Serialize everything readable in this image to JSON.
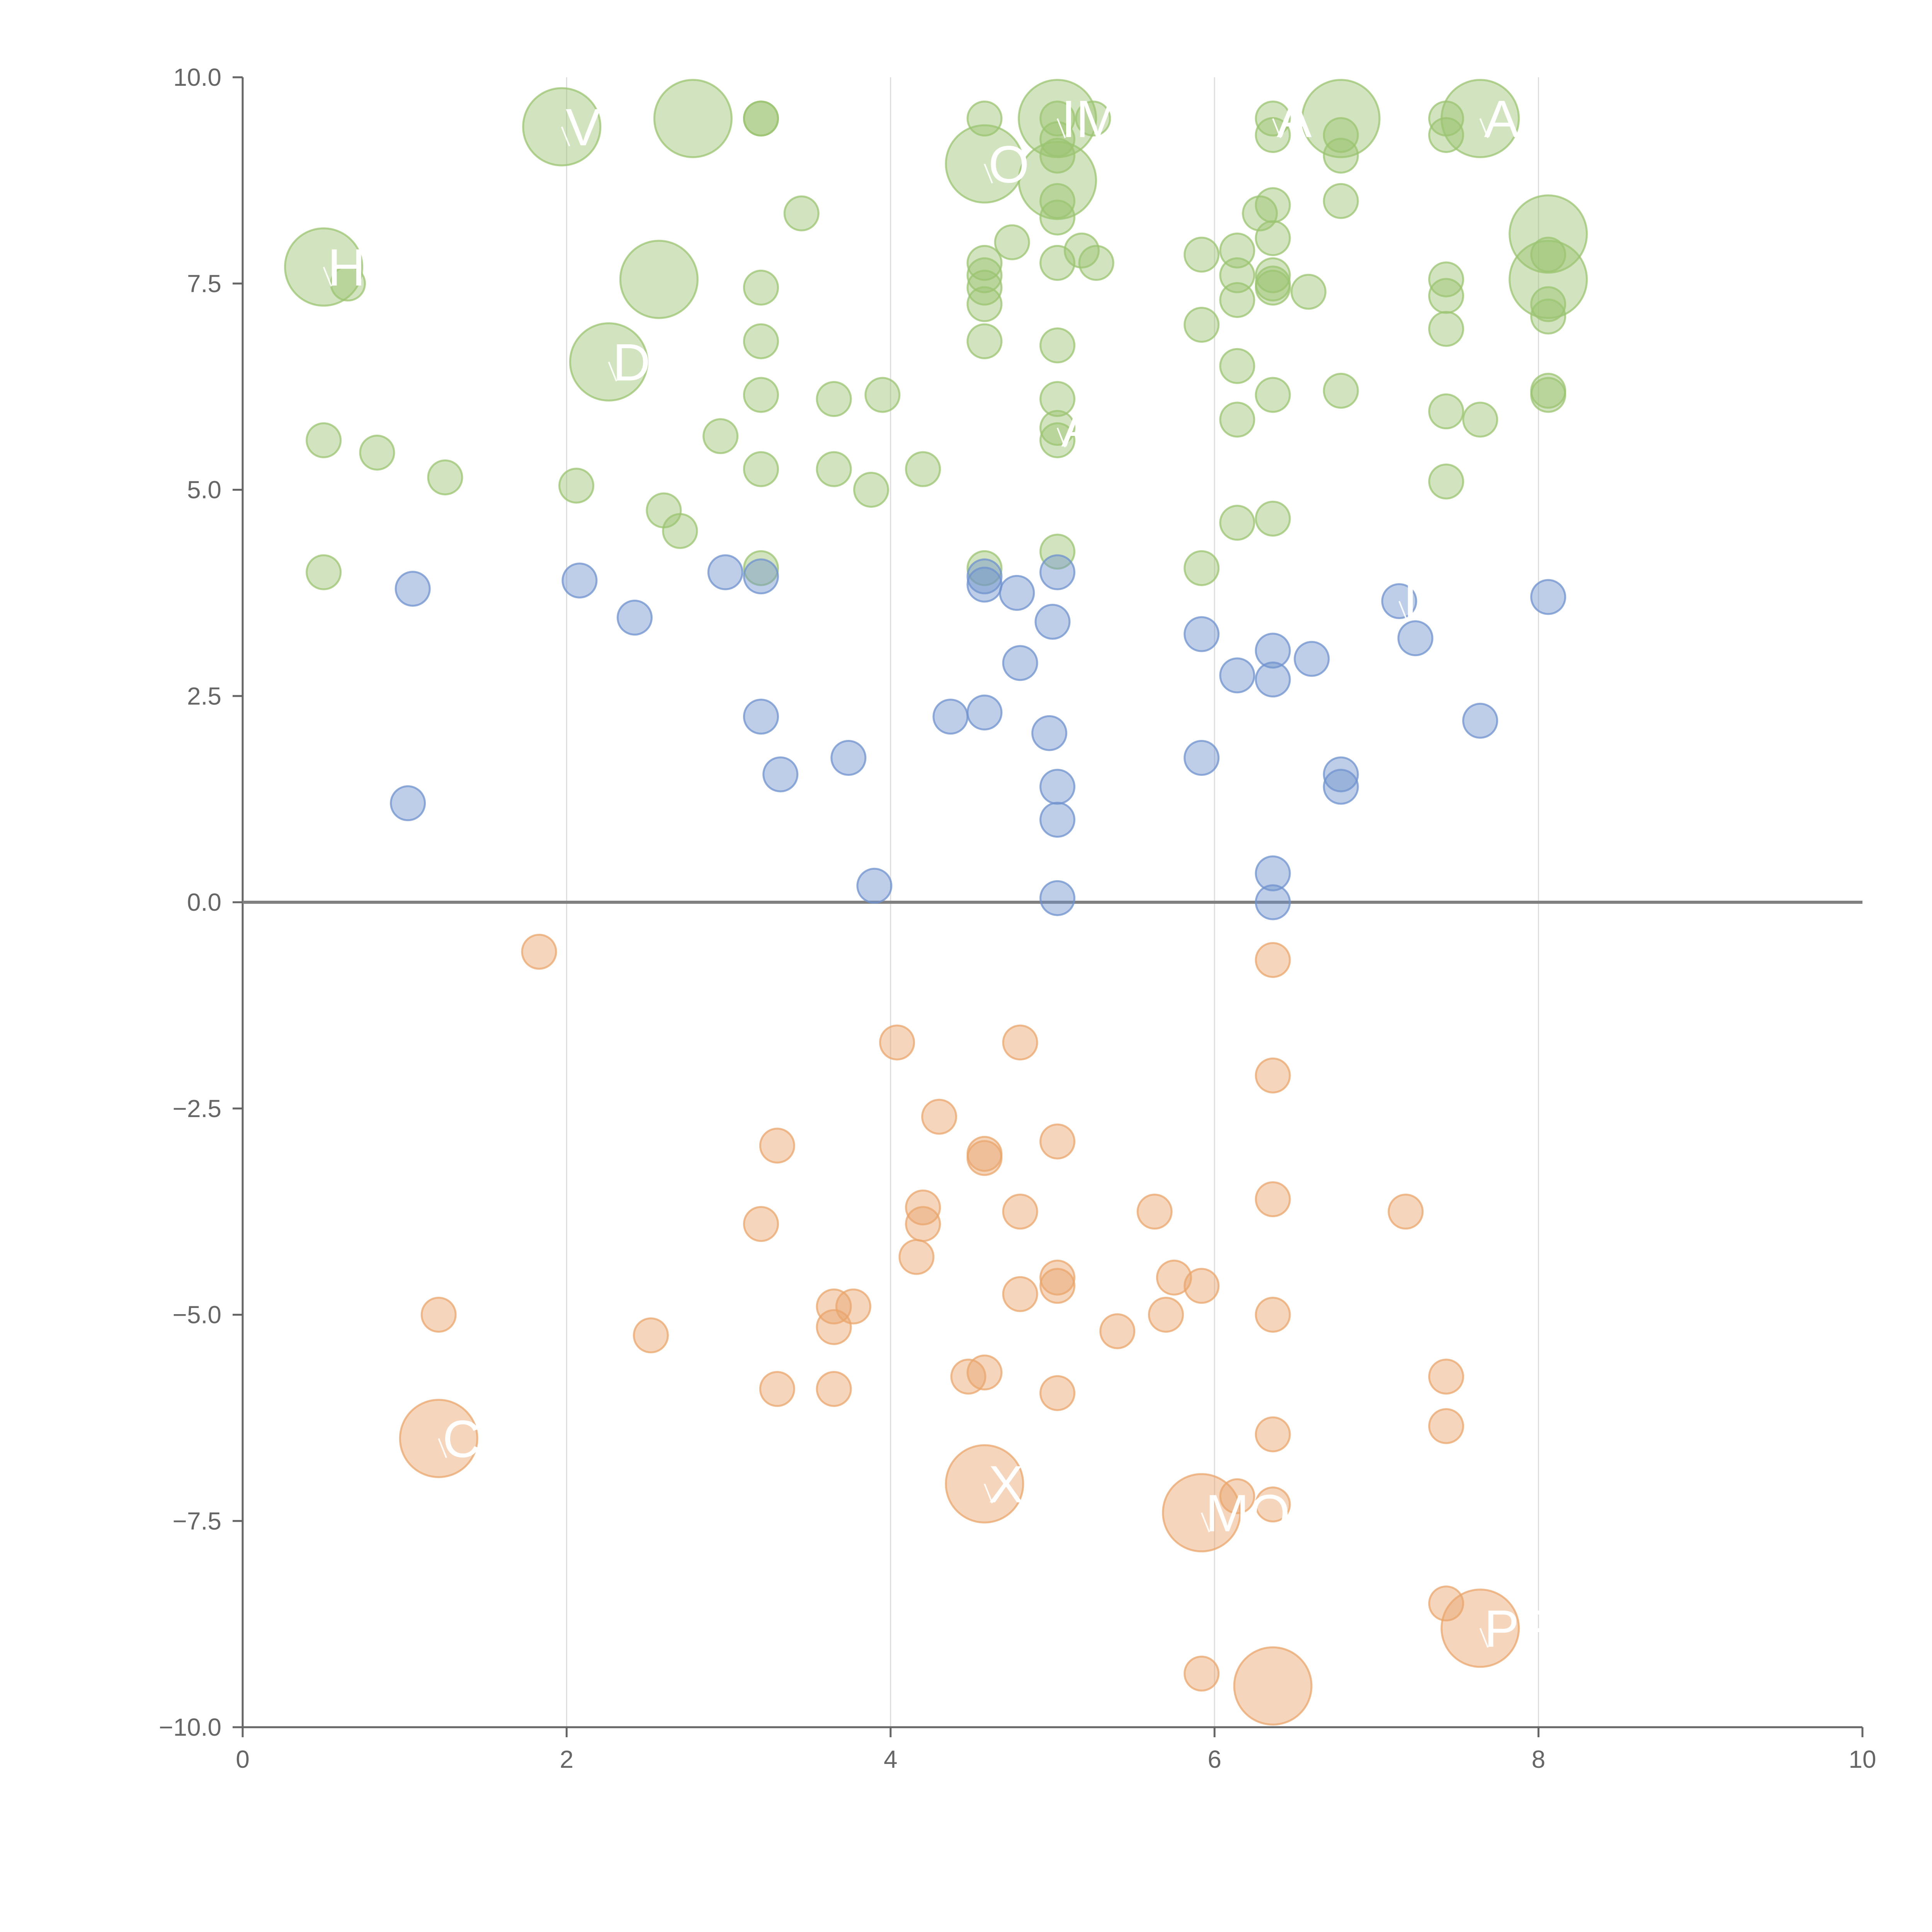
{
  "chart_data": {
    "type": "scatter",
    "title": "",
    "xlabel": "",
    "ylabel": "",
    "xlim": [
      0,
      10
    ],
    "ylim": [
      -10,
      10
    ],
    "x_ticks": [
      "0",
      "2",
      "4",
      "6",
      "8",
      "10"
    ],
    "x_tick_values": [
      0,
      2,
      4,
      6,
      8,
      10
    ],
    "y_ticks": [
      "10.0",
      "7.5",
      "5.0",
      "2.5",
      "0.0",
      "−2.5",
      "−5.0",
      "−7.5",
      "−10.0"
    ],
    "y_tick_values": [
      10,
      7.5,
      5,
      2.5,
      0,
      -2.5,
      -5,
      -7.5,
      -10
    ],
    "grid": "vertical at x ticks",
    "zero_line": 0,
    "colors": {
      "green": "#9bc472",
      "blue": "#6f92cd",
      "orange": "#e9a56c",
      "axis": "#666666",
      "zero_line": "#808080",
      "grid": "#dddddd"
    },
    "series": [
      {
        "name": "green",
        "color": "#9bc472",
        "points": [
          {
            "x": 0.5,
            "y": 7.7,
            "size": "large"
          },
          {
            "x": 0.65,
            "y": 7.5,
            "size": "small"
          },
          {
            "x": 0.5,
            "y": 5.6,
            "size": "small"
          },
          {
            "x": 0.83,
            "y": 5.45,
            "size": "small"
          },
          {
            "x": 1.25,
            "y": 5.15,
            "size": "small"
          },
          {
            "x": 0.5,
            "y": 4.0,
            "size": "small"
          },
          {
            "x": 1.97,
            "y": 9.4,
            "size": "large"
          },
          {
            "x": 2.78,
            "y": 9.5,
            "size": "large"
          },
          {
            "x": 2.57,
            "y": 7.55,
            "size": "large"
          },
          {
            "x": 2.26,
            "y": 6.55,
            "size": "large"
          },
          {
            "x": 2.06,
            "y": 5.05,
            "size": "small"
          },
          {
            "x": 2.6,
            "y": 4.75,
            "size": "small"
          },
          {
            "x": 2.7,
            "y": 4.5,
            "size": "small"
          },
          {
            "x": 2.95,
            "y": 5.65,
            "size": "small"
          },
          {
            "x": 3.2,
            "y": 9.5,
            "size": "small"
          },
          {
            "x": 3.2,
            "y": 9.5,
            "size": "small"
          },
          {
            "x": 3.45,
            "y": 8.35,
            "size": "small"
          },
          {
            "x": 3.2,
            "y": 7.45,
            "size": "small"
          },
          {
            "x": 3.2,
            "y": 6.8,
            "size": "small"
          },
          {
            "x": 3.2,
            "y": 6.15,
            "size": "small"
          },
          {
            "x": 3.2,
            "y": 5.25,
            "size": "small"
          },
          {
            "x": 3.2,
            "y": 4.05,
            "size": "small"
          },
          {
            "x": 3.65,
            "y": 6.1,
            "size": "small"
          },
          {
            "x": 3.65,
            "y": 5.25,
            "size": "small"
          },
          {
            "x": 3.88,
            "y": 5.0,
            "size": "small"
          },
          {
            "x": 3.95,
            "y": 6.15,
            "size": "small"
          },
          {
            "x": 4.2,
            "y": 5.25,
            "size": "small"
          },
          {
            "x": 4.58,
            "y": 9.5,
            "size": "small"
          },
          {
            "x": 4.58,
            "y": 8.95,
            "size": "large"
          },
          {
            "x": 4.58,
            "y": 7.75,
            "size": "small"
          },
          {
            "x": 4.58,
            "y": 7.6,
            "size": "small"
          },
          {
            "x": 4.58,
            "y": 7.45,
            "size": "small"
          },
          {
            "x": 4.58,
            "y": 7.25,
            "size": "small"
          },
          {
            "x": 4.58,
            "y": 6.8,
            "size": "small"
          },
          {
            "x": 4.58,
            "y": 4.05,
            "size": "small"
          },
          {
            "x": 4.75,
            "y": 8.0,
            "size": "small"
          },
          {
            "x": 5.03,
            "y": 9.5,
            "size": "large"
          },
          {
            "x": 5.03,
            "y": 9.5,
            "size": "small"
          },
          {
            "x": 5.03,
            "y": 9.25,
            "size": "small"
          },
          {
            "x": 5.03,
            "y": 9.05,
            "size": "small"
          },
          {
            "x": 5.03,
            "y": 8.75,
            "size": "large"
          },
          {
            "x": 5.03,
            "y": 8.5,
            "size": "small"
          },
          {
            "x": 5.03,
            "y": 8.3,
            "size": "small"
          },
          {
            "x": 5.03,
            "y": 7.75,
            "size": "small"
          },
          {
            "x": 5.03,
            "y": 6.75,
            "size": "small"
          },
          {
            "x": 5.03,
            "y": 6.1,
            "size": "small"
          },
          {
            "x": 5.03,
            "y": 5.75,
            "size": "small"
          },
          {
            "x": 5.03,
            "y": 5.6,
            "size": "small"
          },
          {
            "x": 5.03,
            "y": 4.25,
            "size": "small"
          },
          {
            "x": 5.18,
            "y": 7.9,
            "size": "small"
          },
          {
            "x": 5.27,
            "y": 7.75,
            "size": "small"
          },
          {
            "x": 5.25,
            "y": 9.5,
            "size": "small"
          },
          {
            "x": 5.92,
            "y": 7.85,
            "size": "small"
          },
          {
            "x": 5.92,
            "y": 7.0,
            "size": "small"
          },
          {
            "x": 5.92,
            "y": 4.05,
            "size": "small"
          },
          {
            "x": 6.14,
            "y": 7.9,
            "size": "small"
          },
          {
            "x": 6.14,
            "y": 7.6,
            "size": "small"
          },
          {
            "x": 6.14,
            "y": 7.3,
            "size": "small"
          },
          {
            "x": 6.14,
            "y": 6.5,
            "size": "small"
          },
          {
            "x": 6.14,
            "y": 5.85,
            "size": "small"
          },
          {
            "x": 6.14,
            "y": 4.6,
            "size": "small"
          },
          {
            "x": 6.28,
            "y": 8.35,
            "size": "small"
          },
          {
            "x": 6.36,
            "y": 9.5,
            "size": "small"
          },
          {
            "x": 6.36,
            "y": 9.3,
            "size": "small"
          },
          {
            "x": 6.36,
            "y": 8.45,
            "size": "small"
          },
          {
            "x": 6.36,
            "y": 8.05,
            "size": "small"
          },
          {
            "x": 6.36,
            "y": 7.6,
            "size": "small"
          },
          {
            "x": 6.36,
            "y": 7.5,
            "size": "small"
          },
          {
            "x": 6.36,
            "y": 7.45,
            "size": "small"
          },
          {
            "x": 6.36,
            "y": 6.15,
            "size": "small"
          },
          {
            "x": 6.36,
            "y": 4.65,
            "size": "small"
          },
          {
            "x": 6.58,
            "y": 7.4,
            "size": "small"
          },
          {
            "x": 6.78,
            "y": 9.5,
            "size": "large"
          },
          {
            "x": 6.78,
            "y": 9.3,
            "size": "small"
          },
          {
            "x": 6.78,
            "y": 9.05,
            "size": "small"
          },
          {
            "x": 6.78,
            "y": 8.5,
            "size": "small"
          },
          {
            "x": 6.78,
            "y": 6.2,
            "size": "small"
          },
          {
            "x": 7.43,
            "y": 9.5,
            "size": "small"
          },
          {
            "x": 7.43,
            "y": 9.3,
            "size": "small"
          },
          {
            "x": 7.43,
            "y": 7.55,
            "size": "small"
          },
          {
            "x": 7.43,
            "y": 7.35,
            "size": "small"
          },
          {
            "x": 7.43,
            "y": 6.95,
            "size": "small"
          },
          {
            "x": 7.43,
            "y": 5.95,
            "size": "small"
          },
          {
            "x": 7.43,
            "y": 5.1,
            "size": "small"
          },
          {
            "x": 7.64,
            "y": 9.5,
            "size": "large"
          },
          {
            "x": 7.64,
            "y": 5.85,
            "size": "small"
          },
          {
            "x": 8.06,
            "y": 8.1,
            "size": "large"
          },
          {
            "x": 8.06,
            "y": 7.85,
            "size": "small"
          },
          {
            "x": 8.06,
            "y": 7.55,
            "size": "large"
          },
          {
            "x": 8.06,
            "y": 7.25,
            "size": "small"
          },
          {
            "x": 8.06,
            "y": 7.1,
            "size": "small"
          },
          {
            "x": 8.06,
            "y": 6.2,
            "size": "small"
          },
          {
            "x": 8.06,
            "y": 6.15,
            "size": "small"
          }
        ]
      },
      {
        "name": "blue",
        "color": "#6f92cd",
        "points": [
          {
            "x": 1.05,
            "y": 3.8,
            "size": "small"
          },
          {
            "x": 1.02,
            "y": 1.2,
            "size": "small"
          },
          {
            "x": 2.08,
            "y": 3.9,
            "size": "small"
          },
          {
            "x": 2.42,
            "y": 3.45,
            "size": "small"
          },
          {
            "x": 2.98,
            "y": 4.0,
            "size": "small"
          },
          {
            "x": 3.2,
            "y": 3.95,
            "size": "small"
          },
          {
            "x": 3.2,
            "y": 2.25,
            "size": "small"
          },
          {
            "x": 3.32,
            "y": 1.55,
            "size": "small"
          },
          {
            "x": 3.74,
            "y": 1.75,
            "size": "small"
          },
          {
            "x": 3.9,
            "y": 0.2,
            "size": "small"
          },
          {
            "x": 4.37,
            "y": 2.25,
            "size": "small"
          },
          {
            "x": 4.58,
            "y": 3.95,
            "size": "small"
          },
          {
            "x": 4.58,
            "y": 3.85,
            "size": "small"
          },
          {
            "x": 4.58,
            "y": 2.3,
            "size": "small"
          },
          {
            "x": 4.78,
            "y": 3.75,
            "size": "small"
          },
          {
            "x": 4.8,
            "y": 2.9,
            "size": "small"
          },
          {
            "x": 5.03,
            "y": 4.0,
            "size": "small"
          },
          {
            "x": 5.0,
            "y": 3.4,
            "size": "small"
          },
          {
            "x": 4.98,
            "y": 2.05,
            "size": "small"
          },
          {
            "x": 5.03,
            "y": 1.4,
            "size": "small"
          },
          {
            "x": 5.03,
            "y": 1.0,
            "size": "small"
          },
          {
            "x": 5.03,
            "y": 0.05,
            "size": "small"
          },
          {
            "x": 5.92,
            "y": 3.25,
            "size": "small"
          },
          {
            "x": 5.92,
            "y": 1.75,
            "size": "small"
          },
          {
            "x": 6.14,
            "y": 2.75,
            "size": "small"
          },
          {
            "x": 6.36,
            "y": 3.05,
            "size": "small"
          },
          {
            "x": 6.36,
            "y": 2.7,
            "size": "small"
          },
          {
            "x": 6.36,
            "y": 0.35,
            "size": "small"
          },
          {
            "x": 6.36,
            "y": 0.0,
            "size": "small"
          },
          {
            "x": 6.6,
            "y": 2.95,
            "size": "small"
          },
          {
            "x": 6.78,
            "y": 1.55,
            "size": "small"
          },
          {
            "x": 6.78,
            "y": 1.4,
            "size": "small"
          },
          {
            "x": 7.14,
            "y": 3.65,
            "size": "small"
          },
          {
            "x": 7.24,
            "y": 3.2,
            "size": "small"
          },
          {
            "x": 7.64,
            "y": 2.2,
            "size": "small"
          },
          {
            "x": 8.06,
            "y": 3.7,
            "size": "small"
          }
        ]
      },
      {
        "name": "orange",
        "color": "#e9a56c",
        "points": [
          {
            "x": 1.83,
            "y": -0.6,
            "size": "small"
          },
          {
            "x": 1.21,
            "y": -5.0,
            "size": "small"
          },
          {
            "x": 1.21,
            "y": -6.5,
            "size": "large"
          },
          {
            "x": 2.52,
            "y": -5.25,
            "size": "small"
          },
          {
            "x": 3.2,
            "y": -3.9,
            "size": "small"
          },
          {
            "x": 3.3,
            "y": -2.95,
            "size": "small"
          },
          {
            "x": 3.3,
            "y": -5.9,
            "size": "small"
          },
          {
            "x": 3.65,
            "y": -4.9,
            "size": "small"
          },
          {
            "x": 3.65,
            "y": -5.15,
            "size": "small"
          },
          {
            "x": 3.65,
            "y": -5.9,
            "size": "small"
          },
          {
            "x": 3.77,
            "y": -4.9,
            "size": "small"
          },
          {
            "x": 4.04,
            "y": -1.7,
            "size": "small"
          },
          {
            "x": 4.2,
            "y": -3.7,
            "size": "small"
          },
          {
            "x": 4.2,
            "y": -3.9,
            "size": "small"
          },
          {
            "x": 4.16,
            "y": -4.3,
            "size": "small"
          },
          {
            "x": 4.3,
            "y": -2.6,
            "size": "small"
          },
          {
            "x": 4.48,
            "y": -5.75,
            "size": "small"
          },
          {
            "x": 4.58,
            "y": -3.05,
            "size": "small"
          },
          {
            "x": 4.58,
            "y": -3.1,
            "size": "small"
          },
          {
            "x": 4.58,
            "y": -5.7,
            "size": "small"
          },
          {
            "x": 4.58,
            "y": -7.05,
            "size": "large"
          },
          {
            "x": 4.8,
            "y": -1.7,
            "size": "small"
          },
          {
            "x": 4.8,
            "y": -3.75,
            "size": "small"
          },
          {
            "x": 4.8,
            "y": -4.75,
            "size": "small"
          },
          {
            "x": 5.03,
            "y": -2.9,
            "size": "small"
          },
          {
            "x": 5.03,
            "y": -4.55,
            "size": "small"
          },
          {
            "x": 5.03,
            "y": -4.65,
            "size": "small"
          },
          {
            "x": 5.03,
            "y": -5.95,
            "size": "small"
          },
          {
            "x": 5.4,
            "y": -5.2,
            "size": "small"
          },
          {
            "x": 5.63,
            "y": -3.75,
            "size": "small"
          },
          {
            "x": 5.7,
            "y": -5.0,
            "size": "small"
          },
          {
            "x": 5.75,
            "y": -4.55,
            "size": "small"
          },
          {
            "x": 5.92,
            "y": -4.65,
            "size": "small"
          },
          {
            "x": 5.92,
            "y": -7.4,
            "size": "large"
          },
          {
            "x": 5.92,
            "y": -9.35,
            "size": "small"
          },
          {
            "x": 6.14,
            "y": -7.2,
            "size": "small"
          },
          {
            "x": 6.36,
            "y": -0.7,
            "size": "small"
          },
          {
            "x": 6.36,
            "y": -2.1,
            "size": "small"
          },
          {
            "x": 6.36,
            "y": -3.6,
            "size": "small"
          },
          {
            "x": 6.36,
            "y": -5.0,
            "size": "small"
          },
          {
            "x": 6.36,
            "y": -6.45,
            "size": "small"
          },
          {
            "x": 6.36,
            "y": -7.3,
            "size": "small"
          },
          {
            "x": 6.36,
            "y": -9.5,
            "size": "large"
          },
          {
            "x": 7.18,
            "y": -3.75,
            "size": "small"
          },
          {
            "x": 7.43,
            "y": -5.75,
            "size": "small"
          },
          {
            "x": 7.43,
            "y": -6.35,
            "size": "small"
          },
          {
            "x": 7.43,
            "y": -8.5,
            "size": "small"
          },
          {
            "x": 7.64,
            "y": -8.8,
            "size": "large"
          }
        ]
      }
    ],
    "labels": [
      {
        "text": "HN",
        "x": 0.5,
        "y": 7.7
      },
      {
        "text": "VX",
        "x": 1.97,
        "y": 9.4
      },
      {
        "text": "D",
        "x": 2.26,
        "y": 6.55
      },
      {
        "text": "O",
        "x": 4.58,
        "y": 8.95
      },
      {
        "text": "IM",
        "x": 5.03,
        "y": 9.5
      },
      {
        "text": "A",
        "x": 5.03,
        "y": 5.75
      },
      {
        "text": "A",
        "x": 6.36,
        "y": 9.5
      },
      {
        "text": "AI",
        "x": 7.64,
        "y": 9.5
      },
      {
        "text": "IA",
        "x": 7.14,
        "y": 3.65
      },
      {
        "text": "C",
        "x": 1.21,
        "y": -6.5
      },
      {
        "text": "X",
        "x": 4.58,
        "y": -7.05
      },
      {
        "text": "MO",
        "x": 5.92,
        "y": -7.4
      },
      {
        "text": "PFI",
        "x": 7.64,
        "y": -8.8
      }
    ]
  }
}
